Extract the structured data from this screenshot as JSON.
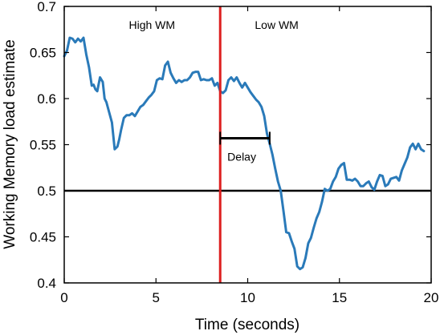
{
  "chart_data": {
    "type": "line",
    "title": "",
    "xlabel": "Time (seconds)",
    "ylabel": "Working Memory load estimate",
    "xlim": [
      0,
      20
    ],
    "ylim": [
      0.4,
      0.7
    ],
    "xticks": [
      0,
      5,
      10,
      15,
      20
    ],
    "xtick_labels": [
      "0",
      "5",
      "10",
      "15",
      "20"
    ],
    "yticks": [
      0.4,
      0.45,
      0.5,
      0.55,
      0.6,
      0.65,
      0.7
    ],
    "ytick_labels": [
      "0.4",
      "0.45",
      "0.5",
      "0.55",
      "0.6",
      "0.65",
      "0.7"
    ],
    "grid": false,
    "series": [
      {
        "color": "#2a7ab9",
        "x": [
          0.0,
          0.15,
          0.3,
          0.45,
          0.6,
          0.75,
          0.9,
          1.05,
          1.2,
          1.35,
          1.5,
          1.6,
          1.7,
          1.8,
          1.95,
          2.1,
          2.2,
          2.3,
          2.45,
          2.6,
          2.75,
          2.9,
          3.0,
          3.1,
          3.25,
          3.4,
          3.55,
          3.7,
          3.85,
          4.0,
          4.15,
          4.3,
          4.45,
          4.6,
          4.75,
          4.9,
          5.05,
          5.2,
          5.35,
          5.5,
          5.65,
          5.8,
          5.95,
          6.1,
          6.25,
          6.4,
          6.55,
          6.7,
          6.85,
          7.0,
          7.15,
          7.3,
          7.45,
          7.6,
          7.75,
          7.9,
          8.05,
          8.2,
          8.35,
          8.5,
          8.65,
          8.8,
          8.95,
          9.1,
          9.25,
          9.4,
          9.55,
          9.7,
          9.85,
          10.0,
          10.15,
          10.3,
          10.45,
          10.6,
          10.75,
          10.9,
          11.05,
          11.2,
          11.35,
          11.5,
          11.65,
          11.8,
          11.95,
          12.1,
          12.25,
          12.4,
          12.55,
          12.7,
          12.85,
          13.0,
          13.15,
          13.3,
          13.45,
          13.6,
          13.75,
          13.9,
          14.05,
          14.2,
          14.35,
          14.5,
          14.65,
          14.8,
          14.95,
          15.1,
          15.25,
          15.4,
          15.55,
          15.7,
          15.85,
          16.0,
          16.15,
          16.3,
          16.45,
          16.6,
          16.75,
          16.9,
          17.05,
          17.2,
          17.35,
          17.5,
          17.65,
          17.8,
          17.95,
          18.1,
          18.25,
          18.4,
          18.55,
          18.7,
          18.85,
          19.0,
          19.15,
          19.3,
          19.45,
          19.6
        ],
        "values": [
          0.646,
          0.652,
          0.666,
          0.665,
          0.661,
          0.665,
          0.662,
          0.666,
          0.648,
          0.634,
          0.614,
          0.615,
          0.61,
          0.608,
          0.623,
          0.618,
          0.6,
          0.596,
          0.585,
          0.574,
          0.545,
          0.548,
          0.556,
          0.566,
          0.579,
          0.582,
          0.582,
          0.584,
          0.581,
          0.586,
          0.591,
          0.593,
          0.597,
          0.601,
          0.604,
          0.608,
          0.62,
          0.622,
          0.621,
          0.636,
          0.64,
          0.628,
          0.622,
          0.617,
          0.62,
          0.618,
          0.62,
          0.62,
          0.623,
          0.628,
          0.629,
          0.629,
          0.62,
          0.621,
          0.62,
          0.62,
          0.622,
          0.614,
          0.617,
          0.608,
          0.606,
          0.609,
          0.62,
          0.623,
          0.619,
          0.623,
          0.617,
          0.612,
          0.617,
          0.612,
          0.607,
          0.603,
          0.599,
          0.596,
          0.591,
          0.581,
          0.562,
          0.551,
          0.539,
          0.524,
          0.51,
          0.5,
          0.478,
          0.455,
          0.454,
          0.445,
          0.437,
          0.418,
          0.415,
          0.417,
          0.427,
          0.443,
          0.449,
          0.46,
          0.47,
          0.477,
          0.488,
          0.502,
          0.5,
          0.502,
          0.51,
          0.515,
          0.524,
          0.528,
          0.53,
          0.512,
          0.512,
          0.511,
          0.513,
          0.51,
          0.505,
          0.505,
          0.508,
          0.51,
          0.504,
          0.501,
          0.51,
          0.517,
          0.516,
          0.505,
          0.507,
          0.513,
          0.514,
          0.515,
          0.511,
          0.522,
          0.529,
          0.536,
          0.547,
          0.551,
          0.545,
          0.551,
          0.545,
          0.543
        ]
      }
    ],
    "hlines": [
      {
        "y": 0.5,
        "color": "#000000"
      }
    ],
    "vlines": [
      {
        "x": 8.5,
        "color": "#dd1f1f"
      }
    ],
    "intervals": [
      {
        "x0": 8.5,
        "x1": 11.2,
        "y": 0.557,
        "label": "Delay"
      }
    ],
    "annotations": [
      {
        "text": "High WM",
        "x": 5.0,
        "y": 0.68
      },
      {
        "text": "Low WM",
        "x": 11.8,
        "y": 0.68
      }
    ]
  }
}
